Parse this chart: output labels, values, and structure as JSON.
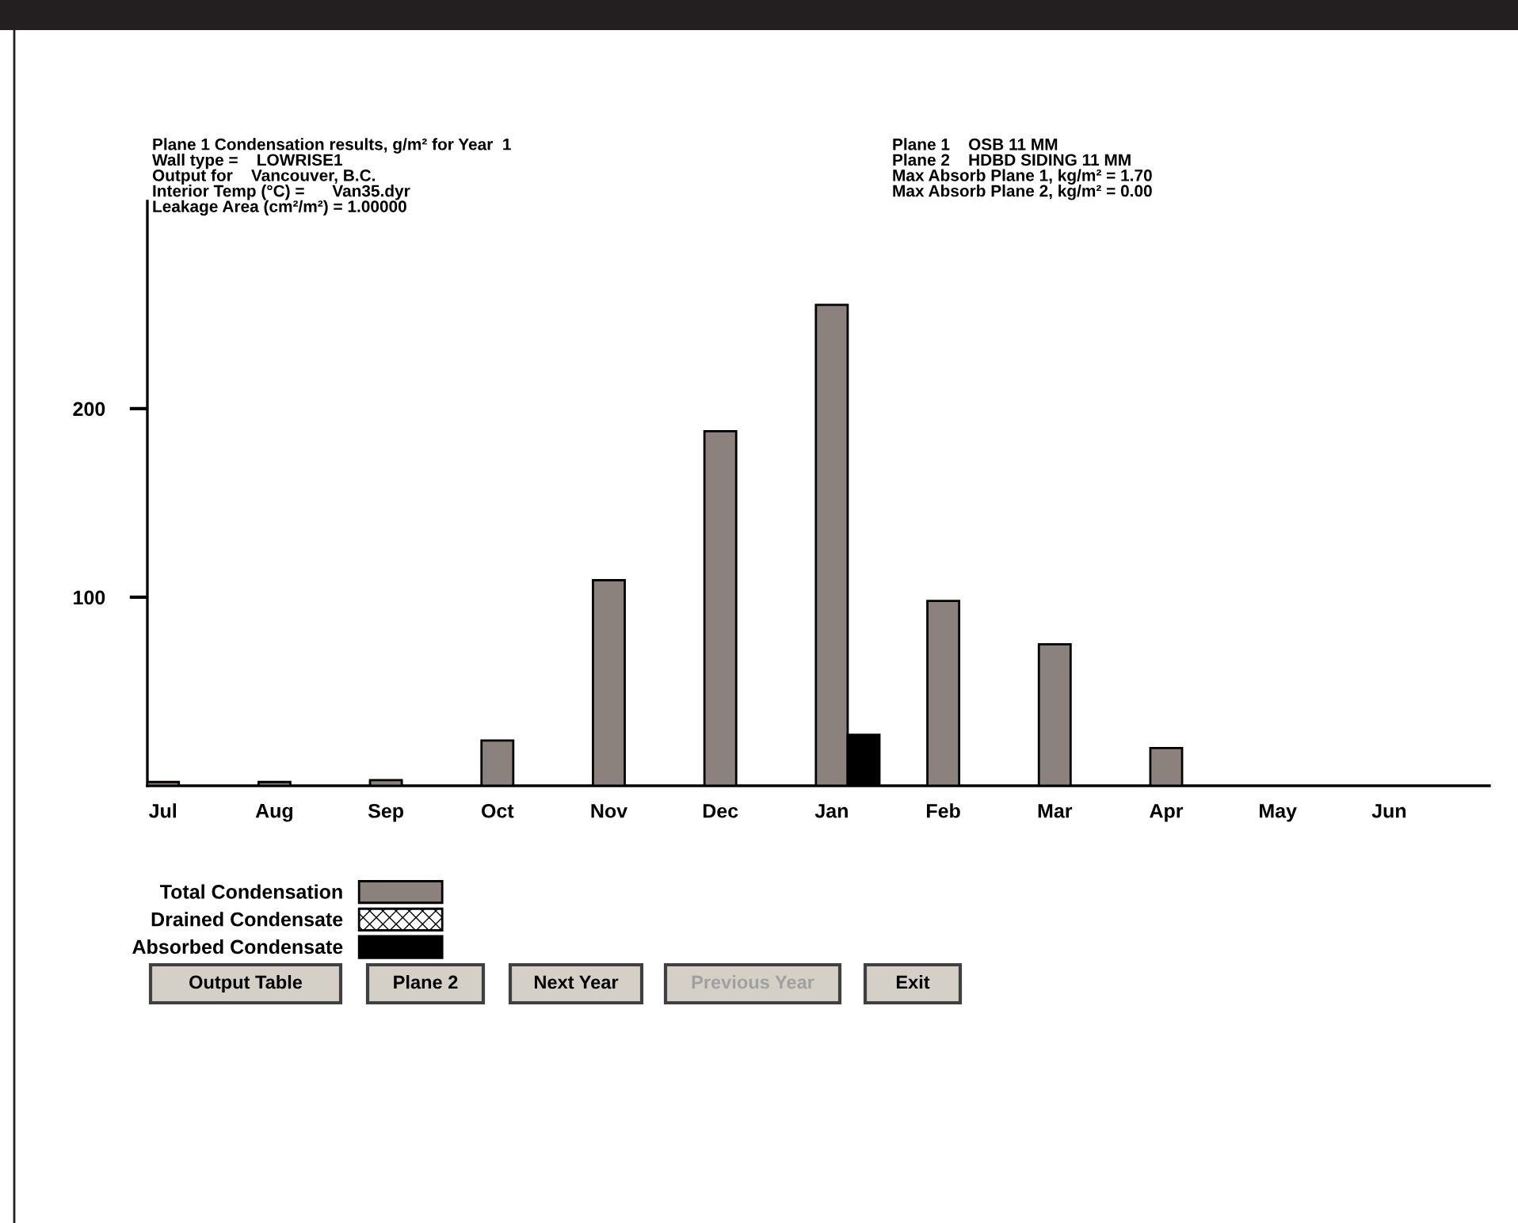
{
  "chart_data": {
    "type": "bar",
    "categories": [
      "Jul",
      "Aug",
      "Sep",
      "Oct",
      "Nov",
      "Dec",
      "Jan",
      "Feb",
      "Mar",
      "Apr",
      "May",
      "Jun"
    ],
    "series": [
      {
        "name": "Total Condensation",
        "color": "#8b827e",
        "values": [
          2,
          2,
          3,
          24,
          109,
          188,
          255,
          98,
          75,
          20,
          null,
          null
        ]
      },
      {
        "name": "Drained Condensate",
        "color": "#000000",
        "values": [
          null,
          null,
          null,
          null,
          null,
          null,
          null,
          null,
          null,
          null,
          null,
          null
        ]
      },
      {
        "name": "Absorbed Condensate",
        "color": "#000000",
        "values": [
          null,
          null,
          null,
          null,
          null,
          null,
          27,
          null,
          null,
          null,
          null,
          null
        ]
      }
    ],
    "ylim": [
      0,
      310
    ],
    "yticks": [
      100,
      200
    ],
    "grid": false,
    "legend": "bottom left",
    "annotations": [
      "Plane 1 Condensation results, g/m² for Year  1",
      "Wall type =    LOWRISE1",
      "Output for    Vancouver, B.C.",
      "Interior Temp (°C) =      Van35.dyr",
      "Leakage Area (cm²/m²) = 1.00000",
      "Plane 1    OSB 11 MM",
      "Plane 2    HDBD SIDING 11 MM",
      "Max Absorb Plane 1, kg/m² = 1.70",
      "Max Absorb Plane 2, kg/m² = 0.00",
      "Output Table",
      "Plane 2",
      "Next Year",
      "Previous Year",
      "Exit"
    ]
  }
}
